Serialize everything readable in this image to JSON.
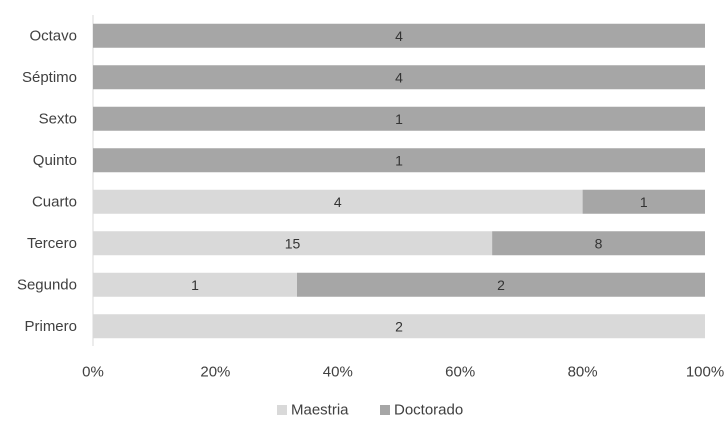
{
  "chart_data": {
    "type": "bar",
    "orientation": "horizontal",
    "stacked": "percent",
    "categories": [
      "Primero",
      "Segundo",
      "Tercero",
      "Cuarto",
      "Quinto",
      "Sexto",
      "Séptimo",
      "Octavo"
    ],
    "series": [
      {
        "name": "Maestria",
        "color": "#d9d9d9",
        "values": [
          2,
          1,
          15,
          4,
          0,
          0,
          0,
          0
        ]
      },
      {
        "name": "Doctorado",
        "color": "#a6a6a6",
        "values": [
          0,
          2,
          8,
          1,
          1,
          1,
          4,
          4
        ]
      }
    ],
    "x_ticks": [
      "0%",
      "20%",
      "40%",
      "60%",
      "80%",
      "100%"
    ],
    "xlim": [
      0,
      100
    ],
    "grid": false,
    "legend_position": "bottom"
  }
}
